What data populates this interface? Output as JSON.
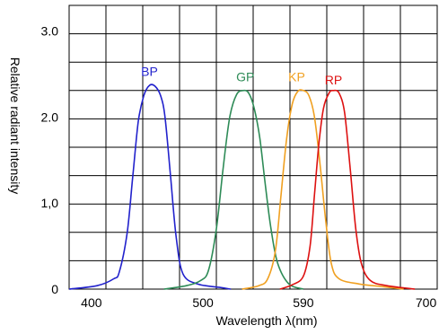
{
  "chart_data": {
    "type": "line",
    "title": "",
    "xlabel": "Wavelength λ(nm)",
    "ylabel": "Relative radiant intensity",
    "xlim": [
      380,
      710
    ],
    "ylim": [
      0,
      3.3
    ],
    "grid": true,
    "x_ticks": [
      {
        "value": 400,
        "label": "400"
      },
      {
        "value": 500,
        "label": "500"
      },
      {
        "value": 590,
        "label": "590"
      },
      {
        "value": 700,
        "label": "700"
      }
    ],
    "y_ticks": [
      {
        "value": 0,
        "label": "0"
      },
      {
        "value": 1.0,
        "label": "1,0"
      },
      {
        "value": 2.0,
        "label": "2.0"
      },
      {
        "value": 3.0,
        "label": "3.0"
      }
    ],
    "series": [
      {
        "name": "BP",
        "color": "#2222cc",
        "label_at": [
          452,
          2.48
        ],
        "points": [
          [
            380,
            0
          ],
          [
            405,
            0.04
          ],
          [
            420,
            0.12
          ],
          [
            425,
            0.2
          ],
          [
            432,
            0.65
          ],
          [
            437,
            1.3
          ],
          [
            442,
            1.95
          ],
          [
            447,
            2.25
          ],
          [
            452,
            2.37
          ],
          [
            457,
            2.36
          ],
          [
            462,
            2.25
          ],
          [
            466,
            2.0
          ],
          [
            471,
            1.3
          ],
          [
            476,
            0.6
          ],
          [
            482,
            0.18
          ],
          [
            495,
            0.06
          ],
          [
            515,
            0.02
          ],
          [
            525,
            0.0
          ]
        ]
      },
      {
        "name": "GP",
        "color": "#2e8b57",
        "label_at": [
          538,
          2.42
        ],
        "points": [
          [
            465,
            0
          ],
          [
            485,
            0.04
          ],
          [
            498,
            0.1
          ],
          [
            505,
            0.22
          ],
          [
            512,
            0.7
          ],
          [
            518,
            1.4
          ],
          [
            524,
            2.0
          ],
          [
            530,
            2.26
          ],
          [
            536,
            2.31
          ],
          [
            541,
            2.28
          ],
          [
            546,
            2.1
          ],
          [
            551,
            1.75
          ],
          [
            556,
            1.2
          ],
          [
            561,
            0.7
          ],
          [
            567,
            0.3
          ],
          [
            577,
            0.06
          ],
          [
            590,
            0.0
          ]
        ]
      },
      {
        "name": "KP",
        "color": "#f0a020",
        "label_at": [
          584,
          2.42
        ],
        "points": [
          [
            535,
            0
          ],
          [
            550,
            0.04
          ],
          [
            558,
            0.12
          ],
          [
            565,
            0.45
          ],
          [
            570,
            1.1
          ],
          [
            575,
            1.75
          ],
          [
            580,
            2.15
          ],
          [
            585,
            2.3
          ],
          [
            590,
            2.31
          ],
          [
            595,
            2.25
          ],
          [
            600,
            2.0
          ],
          [
            605,
            1.45
          ],
          [
            610,
            0.8
          ],
          [
            615,
            0.3
          ],
          [
            622,
            0.12
          ],
          [
            640,
            0.06
          ],
          [
            660,
            0.03
          ],
          [
            680,
            0.0
          ]
        ]
      },
      {
        "name": "RP",
        "color": "#dd1111",
        "label_at": [
          617,
          2.38
        ],
        "points": [
          [
            569,
            0
          ],
          [
            580,
            0.05
          ],
          [
            590,
            0.15
          ],
          [
            596,
            0.5
          ],
          [
            600,
            1.1
          ],
          [
            604,
            1.7
          ],
          [
            608,
            2.1
          ],
          [
            613,
            2.28
          ],
          [
            617,
            2.31
          ],
          [
            622,
            2.28
          ],
          [
            627,
            2.05
          ],
          [
            632,
            1.4
          ],
          [
            637,
            0.7
          ],
          [
            642,
            0.3
          ],
          [
            650,
            0.1
          ],
          [
            665,
            0.04
          ],
          [
            690,
            0.0
          ]
        ]
      }
    ]
  }
}
